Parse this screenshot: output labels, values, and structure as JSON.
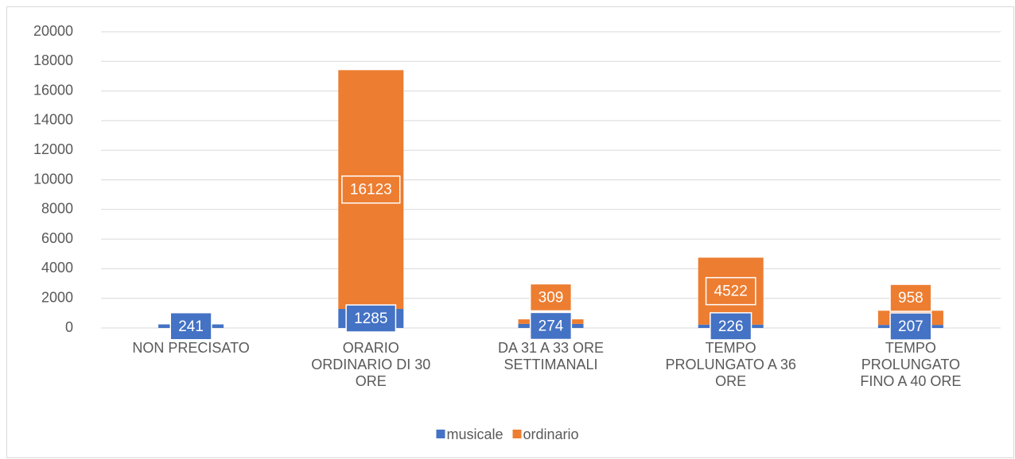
{
  "chart_data": {
    "type": "stacked_bar",
    "categories": [
      "NON PRECISATO",
      "ORARIO ORDINARIO DI 30 ORE",
      "DA 31 A 33 ORE SETTIMANALI",
      "TEMPO PROLUNGATO A 36 ORE",
      "TEMPO PROLUNGATO FINO A 40 ORE"
    ],
    "series": [
      {
        "name": "musicale",
        "color": "#4472c4",
        "values": [
          241,
          1285,
          274,
          226,
          207
        ]
      },
      {
        "name": "ordinario",
        "color": "#ed7d31",
        "values": [
          null,
          16123,
          309,
          4522,
          958
        ]
      }
    ],
    "ylim": [
      0,
      20000
    ],
    "yticks": [
      0,
      2000,
      4000,
      6000,
      8000,
      10000,
      12000,
      14000,
      16000,
      18000,
      20000
    ],
    "grid": true,
    "legend": "bottom"
  }
}
